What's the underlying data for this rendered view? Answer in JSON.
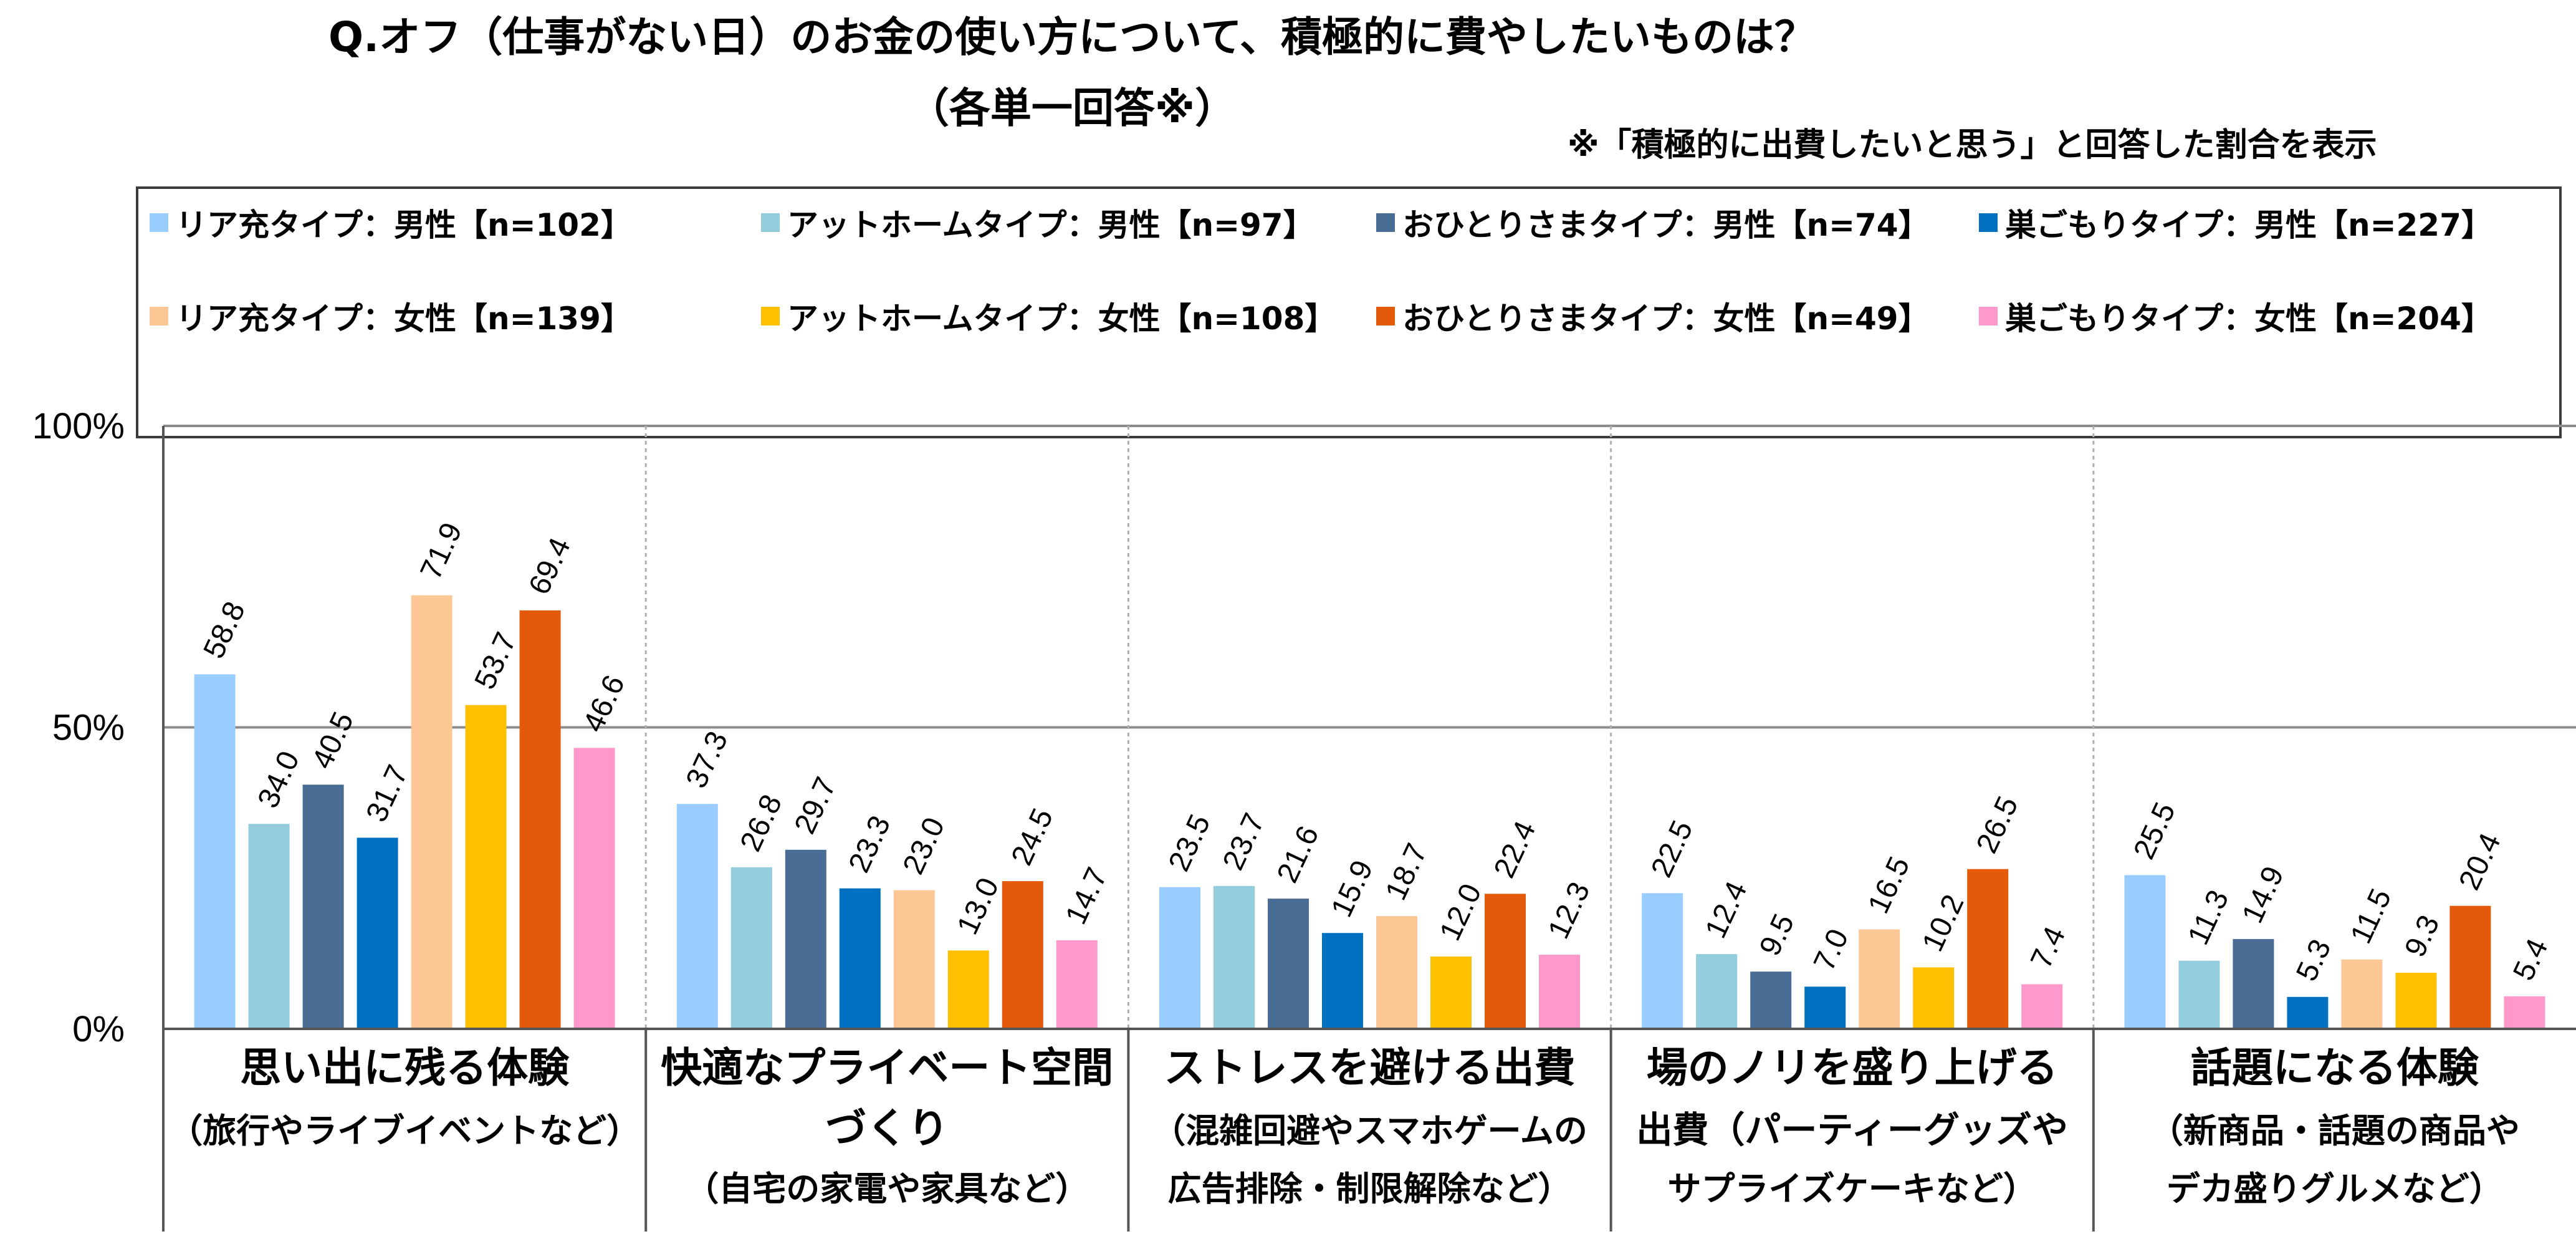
{
  "title_line1": "Q.オフ（仕事がない日）のお金の使い方について、積極的に費やしたいものは？",
  "title_line2": "（各単一回答※）",
  "note": "※「積極的に出費したいと思う」と回答した割合を表示",
  "colors": [
    "#99ccff",
    "#92cddc",
    "#4a6d96",
    "#0070c0",
    "#fcc695",
    "#ffc000",
    "#e55a0a",
    "#ff99cc"
  ],
  "chart_data": {
    "type": "bar",
    "ylim": [
      0,
      100
    ],
    "yticks": [
      "0%",
      "50%",
      "100%"
    ],
    "ytick_values": [
      0,
      50,
      100
    ],
    "legend_position": "top",
    "categories": [
      {
        "line1": "思い出に残る体験",
        "line2": "（旅行やライブイベントなど）",
        "line3": ""
      },
      {
        "line1": "快適なプライベート空間",
        "line2": "づくり",
        "line3": "（自宅の家電や家具など）"
      },
      {
        "line1": "ストレスを避ける出費",
        "line2": "（混雑回避やスマホゲームの",
        "line3": "広告排除・制限解除など）"
      },
      {
        "line1": "場のノリを盛り上げる",
        "line2": "出費（パーティーグッズや",
        "line3": "サプライズケーキなど）"
      },
      {
        "line1": "話題になる体験",
        "line2": "（新商品・話題の商品や",
        "line3": "デカ盛りグルメなど）"
      }
    ],
    "series": [
      {
        "name": "リア充タイプ：男性【n=102】",
        "values": [
          58.8,
          37.3,
          23.5,
          22.5,
          25.5
        ]
      },
      {
        "name": "アットホームタイプ：男性【n=97】",
        "values": [
          34.0,
          26.8,
          23.7,
          12.4,
          11.3
        ]
      },
      {
        "name": "おひとりさまタイプ：男性【n=74】",
        "values": [
          40.5,
          29.7,
          21.6,
          9.5,
          14.9
        ]
      },
      {
        "name": "巣ごもりタイプ：男性【n=227】",
        "values": [
          31.7,
          23.3,
          15.9,
          7.0,
          5.3
        ]
      },
      {
        "name": "リア充タイプ：女性【n=139】",
        "values": [
          71.9,
          23.0,
          18.7,
          16.5,
          11.5
        ]
      },
      {
        "name": "アットホームタイプ：女性【n=108】",
        "values": [
          53.7,
          13.0,
          12.0,
          10.2,
          9.3
        ]
      },
      {
        "name": "おひとりさまタイプ：女性【n=49】",
        "values": [
          69.4,
          24.5,
          22.4,
          26.5,
          20.4
        ]
      },
      {
        "name": "巣ごもりタイプ：女性【n=204】",
        "values": [
          46.6,
          14.7,
          12.3,
          7.4,
          5.4
        ]
      }
    ]
  }
}
